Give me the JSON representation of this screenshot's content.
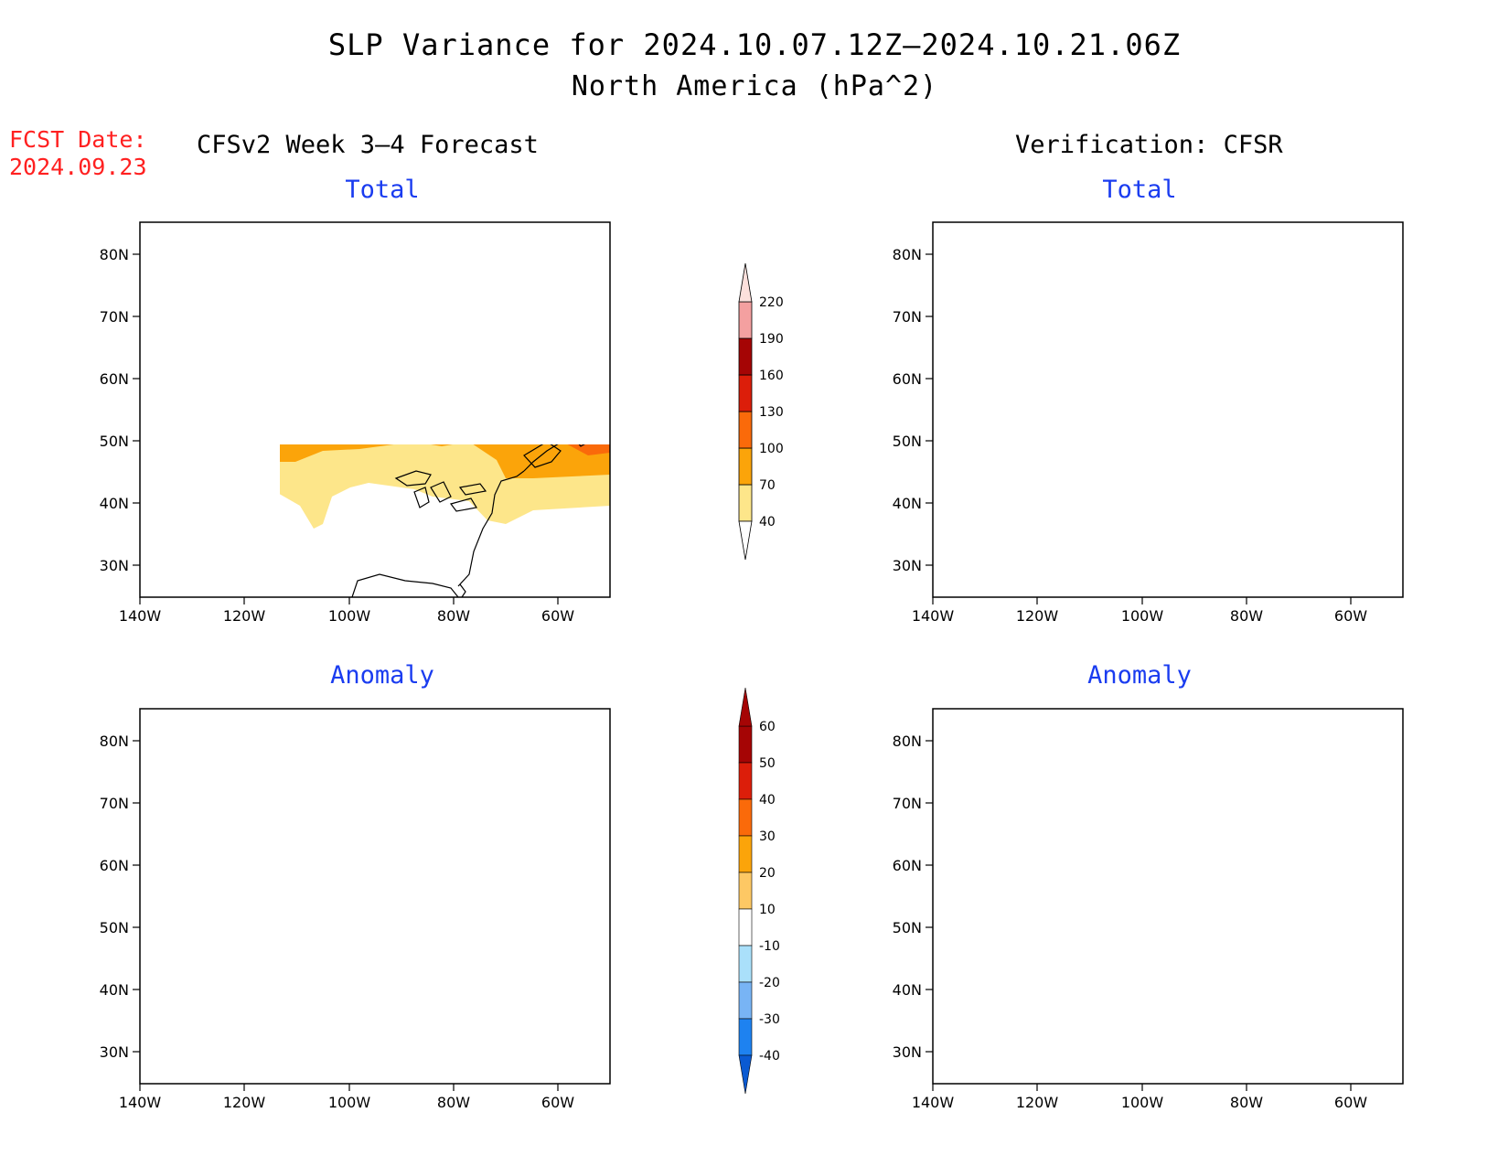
{
  "title": "SLP Variance for 2024.10.07.12Z—2024.10.21.06Z",
  "subtitle": "North America (hPa^2)",
  "fcst_label": "FCST Date:",
  "fcst_date": "2024.09.23",
  "left_header": "CFSv2 Week 3—4 Forecast",
  "right_header": "Verification: CFSR",
  "panels": {
    "tl": {
      "title": "Total"
    },
    "tr": {
      "title": "Total"
    },
    "bl": {
      "title": "Anomaly"
    },
    "br": {
      "title": "Anomaly"
    }
  },
  "lat_ticks": [
    "80N",
    "70N",
    "60N",
    "50N",
    "40N",
    "30N"
  ],
  "lon_ticks": [
    "140W",
    "120W",
    "100W",
    "80W",
    "60W"
  ],
  "total_colorbar": {
    "labels": [
      "40",
      "70",
      "100",
      "130",
      "160",
      "190",
      "220"
    ],
    "colors": [
      "#fde68a",
      "#fba40a",
      "#fa6a0a",
      "#dc1e0a",
      "#a50505",
      "#f4a0a0",
      "#fde0dc"
    ]
  },
  "anomaly_colorbar": {
    "labels": [
      "-40",
      "-30",
      "-20",
      "-10",
      "10",
      "20",
      "30",
      "40",
      "50",
      "60"
    ],
    "colors": [
      "#0a5ad2",
      "#1e82f0",
      "#78b4f5",
      "#aae0fa",
      "#e1fafa",
      "#ffffff",
      "#fdf0a0",
      "#fdc864",
      "#fba40a",
      "#fa6a0a",
      "#dc1e0a",
      "#a50505"
    ]
  }
}
